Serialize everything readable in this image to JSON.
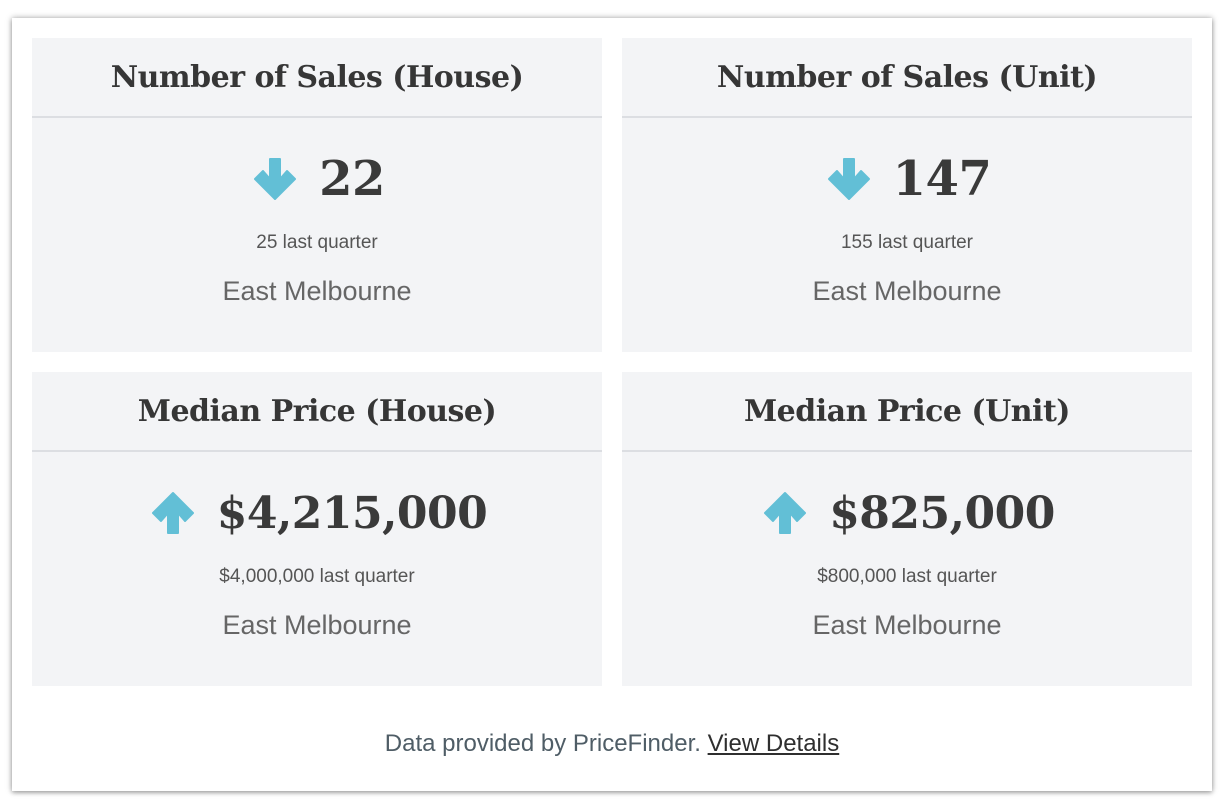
{
  "cards": [
    {
      "title": "Number of Sales (House)",
      "value": "22",
      "trend": "down",
      "trend_icon": "arrow-down-icon",
      "last_quarter": "25 last quarter",
      "suburb": "East Melbourne"
    },
    {
      "title": "Number of Sales (Unit)",
      "value": "147",
      "trend": "down",
      "trend_icon": "arrow-down-icon",
      "last_quarter": "155 last quarter",
      "suburb": "East Melbourne"
    },
    {
      "title": "Median Price (House)",
      "value": "$4,215,000",
      "trend": "up",
      "trend_icon": "arrow-up-icon",
      "last_quarter": "$4,000,000 last quarter",
      "suburb": "East Melbourne"
    },
    {
      "title": "Median Price (Unit)",
      "value": "$825,000",
      "trend": "up",
      "trend_icon": "arrow-up-icon",
      "last_quarter": "$800,000 last quarter",
      "suburb": "East Melbourne"
    }
  ],
  "footer": {
    "text": "Data provided by PriceFinder.",
    "link_label": "View Details"
  },
  "colors": {
    "arrow": "#62bfd6",
    "card_bg": "#f3f4f6",
    "text": "#363636"
  }
}
